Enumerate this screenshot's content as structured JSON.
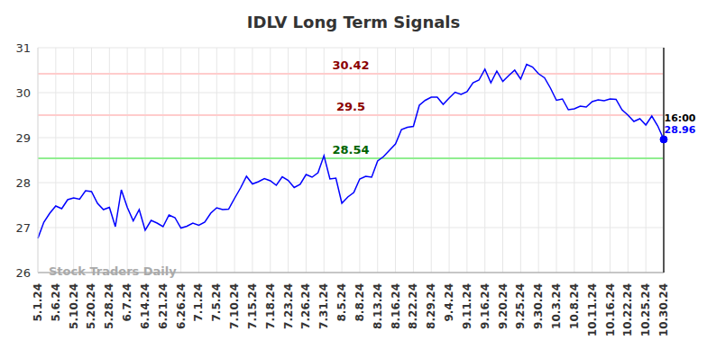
{
  "chart_data": {
    "type": "line",
    "title": "IDLV Long Term Signals",
    "categories": [
      "5.1.24",
      null,
      null,
      "5.6.24",
      null,
      null,
      "5.10.24",
      null,
      null,
      "5.20.24",
      null,
      null,
      "5.28.24",
      null,
      null,
      "6.7.24",
      null,
      null,
      "6.14.24",
      null,
      null,
      "6.21.24",
      null,
      null,
      "6.26.24",
      null,
      null,
      "7.1.24",
      null,
      null,
      "7.5.24",
      null,
      null,
      "7.10.24",
      null,
      null,
      "7.15.24",
      null,
      null,
      "7.18.24",
      null,
      null,
      "7.23.24",
      null,
      null,
      "7.26.24",
      null,
      null,
      "7.31.24",
      null,
      null,
      "8.5.24",
      null,
      null,
      "8.8.24",
      null,
      null,
      "8.13.24",
      null,
      null,
      "8.16.24",
      null,
      null,
      "8.22.24",
      null,
      null,
      "8.29.24",
      null,
      null,
      "9.4.24",
      null,
      null,
      "9.11.24",
      null,
      null,
      "9.16.24",
      null,
      null,
      "9.20.24",
      null,
      null,
      "9.25.24",
      null,
      null,
      "9.30.24",
      null,
      null,
      "10.3.24",
      null,
      null,
      "10.8.24",
      null,
      null,
      "10.11.24",
      null,
      null,
      "10.16.24",
      null,
      null,
      "10.22.24",
      null,
      null,
      "10.25.24",
      null,
      null,
      "10.30.24"
    ],
    "values": [
      26.76,
      27.12,
      27.32,
      27.48,
      27.42,
      27.62,
      27.66,
      27.63,
      27.82,
      27.8,
      27.54,
      27.4,
      27.45,
      27.02,
      27.84,
      27.45,
      27.15,
      27.4,
      26.94,
      27.16,
      27.1,
      27.02,
      27.28,
      27.22,
      26.99,
      27.03,
      27.1,
      27.05,
      27.12,
      27.32,
      27.44,
      27.4,
      27.41,
      27.65,
      27.88,
      28.14,
      27.97,
      28.02,
      28.09,
      28.04,
      27.94,
      28.13,
      28.05,
      27.89,
      27.96,
      28.18,
      28.12,
      28.22,
      28.6,
      28.08,
      28.1,
      27.54,
      27.68,
      27.78,
      28.08,
      28.14,
      28.12,
      28.48,
      28.58,
      28.72,
      28.86,
      29.18,
      29.23,
      29.25,
      29.72,
      29.83,
      29.9,
      29.9,
      29.74,
      29.88,
      30.01,
      29.96,
      30.02,
      30.22,
      30.28,
      30.52,
      30.22,
      30.48,
      30.25,
      30.38,
      30.5,
      30.3,
      30.63,
      30.57,
      30.42,
      30.33,
      30.1,
      29.83,
      29.86,
      29.62,
      29.64,
      29.7,
      29.68,
      29.8,
      29.84,
      29.82,
      29.86,
      29.85,
      29.62,
      29.5,
      29.36,
      29.42,
      29.28,
      29.48,
      29.26,
      28.96
    ],
    "color": "#0000ff",
    "ylim": [
      26,
      31
    ],
    "yticks": [
      26,
      27,
      28,
      29,
      30,
      31
    ],
    "grid": true,
    "reference_lines": [
      {
        "value": 30.42,
        "color": "#ffcccc",
        "label_color": "#8b0000"
      },
      {
        "value": 29.5,
        "color": "#ffcccc",
        "label_color": "#8b0000"
      },
      {
        "value": 28.54,
        "color": "#90ee90",
        "label_color": "#006400"
      }
    ],
    "last_point_label": "16:00",
    "watermark": "Stock Traders Daily"
  }
}
